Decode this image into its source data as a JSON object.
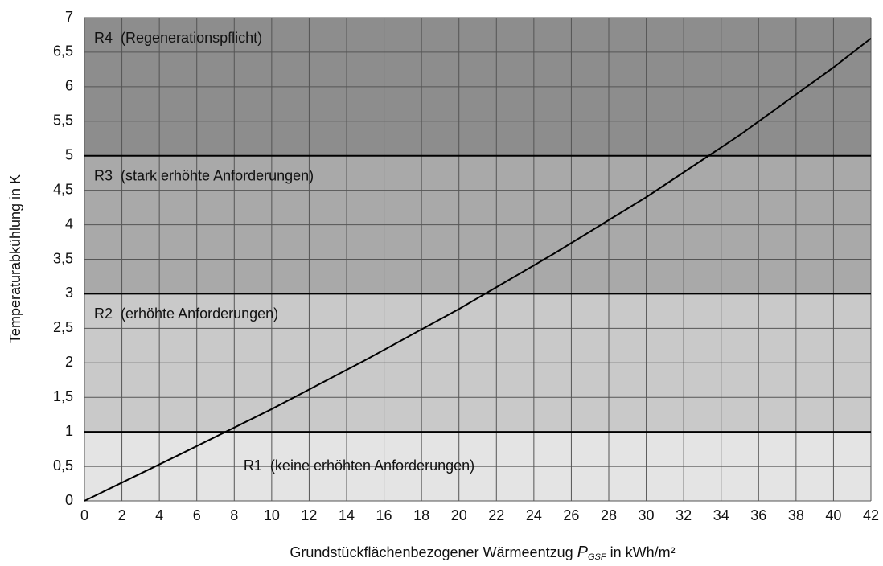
{
  "chart_data": {
    "type": "line",
    "xlabel": {
      "prefix": "Grundstückflächenbezogener Wärmeentzug ",
      "symbol": "P",
      "subscript": "GSF",
      "suffix": " in kWh/m²"
    },
    "ylabel": "Temperaturabkühlung in K",
    "x": [
      0,
      5,
      10,
      15,
      20,
      25,
      30,
      35,
      40,
      42
    ],
    "series": [
      {
        "color": "#000000",
        "values": [
          0,
          0.66,
          1.33,
          2.04,
          2.78,
          3.57,
          4.4,
          5.3,
          6.28,
          6.7
        ]
      }
    ],
    "regions": [
      {
        "label": "R1  (keine erhöhten Anforderungen)",
        "from": 0,
        "to": 1,
        "color": "#e4e4e4"
      },
      {
        "label": "R2  (erhöhte Anforderungen)",
        "from": 1,
        "to": 3,
        "color": "#c9c9c9"
      },
      {
        "label": "R3  (stark erhöhte Anforderungen)",
        "from": 3,
        "to": 5,
        "color": "#a9a9a9"
      },
      {
        "label": "R4  (Regenerationspflicht)",
        "from": 5,
        "to": 7,
        "color": "#8d8d8d"
      }
    ],
    "xlim": [
      0,
      42
    ],
    "ylim": [
      0,
      7
    ],
    "xticks": [
      0,
      2,
      4,
      6,
      8,
      10,
      12,
      14,
      16,
      18,
      20,
      22,
      24,
      26,
      28,
      30,
      32,
      34,
      36,
      38,
      40,
      42
    ],
    "yticks": [
      0,
      {
        "value": 0.5,
        "label": "0,5"
      },
      1,
      {
        "value": 1.5,
        "label": "1,5"
      },
      2,
      {
        "value": 2.5,
        "label": "2,5"
      },
      3,
      {
        "value": 3.5,
        "label": "3,5"
      },
      4,
      {
        "value": 4.5,
        "label": "4,5"
      },
      5,
      {
        "value": 5.5,
        "label": "5,5"
      },
      6,
      {
        "value": 6.5,
        "label": "6,5"
      },
      7
    ],
    "grid": true
  }
}
